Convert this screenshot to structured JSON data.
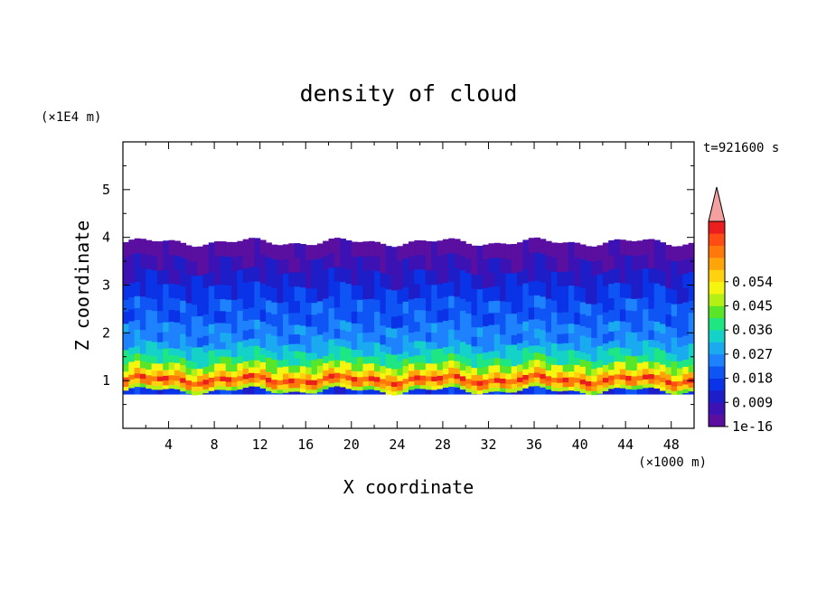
{
  "chart_data": {
    "type": "heatmap",
    "title": "density of cloud",
    "xlabel": "X coordinate",
    "ylabel": "Z coordinate",
    "x_unit": "(×1000 m)",
    "y_unit": "(×1E4 m)",
    "time_label": "t=921600 s",
    "xlim": [
      0,
      50
    ],
    "ylim": [
      0,
      6
    ],
    "x_ticks": [
      "4",
      "8",
      "12",
      "16",
      "20",
      "24",
      "28",
      "32",
      "36",
      "40",
      "44",
      "48"
    ],
    "y_ticks": [
      "1",
      "2",
      "3",
      "4",
      "5"
    ],
    "colorbar": {
      "labels": [
        "1e-16",
        "0.009",
        "0.018",
        "0.027",
        "0.036",
        "0.045",
        "0.054"
      ],
      "colors": [
        "#5a0fa0",
        "#3c12b4",
        "#1e1ec8",
        "#0a32e6",
        "#0f55f5",
        "#1e82ff",
        "#19aaf0",
        "#14d2c8",
        "#1ee682",
        "#5ae628",
        "#b4f014",
        "#f5f50f",
        "#ffd20f",
        "#ffa50a",
        "#ff780a",
        "#ff4b14",
        "#eb1e1e"
      ],
      "extend_color": "#f5a0a0"
    },
    "profile": [
      {
        "z": 0.72,
        "level": 3
      },
      {
        "z": 0.8,
        "level": 10
      },
      {
        "z": 0.88,
        "level": 13
      },
      {
        "z": 0.98,
        "level": 15
      },
      {
        "z": 1.08,
        "level": 12
      },
      {
        "z": 1.2,
        "level": 10
      },
      {
        "z": 1.35,
        "level": 8
      },
      {
        "z": 1.5,
        "level": 7
      },
      {
        "z": 1.65,
        "level": 6
      },
      {
        "z": 1.8,
        "level": 5
      },
      {
        "z": 2.0,
        "level": 4.5
      },
      {
        "z": 2.2,
        "level": 4
      },
      {
        "z": 2.45,
        "level": 3.5
      },
      {
        "z": 2.7,
        "level": 2.5
      },
      {
        "z": 3.0,
        "level": 1.5
      },
      {
        "z": 3.3,
        "level": 0.8
      },
      {
        "z": 3.6,
        "level": 0.3
      },
      {
        "z": 3.9,
        "level": 0
      }
    ]
  }
}
